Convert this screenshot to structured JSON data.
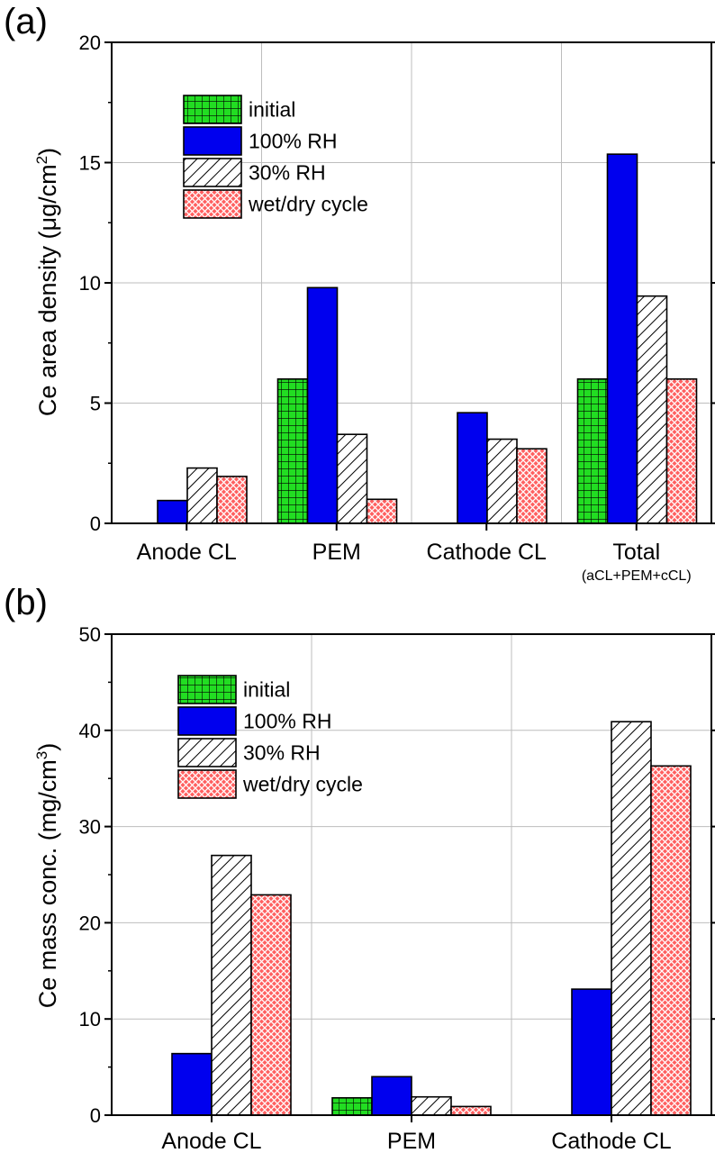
{
  "figure": {
    "panels": [
      {
        "label": "(a)"
      },
      {
        "label": "(b)"
      }
    ]
  },
  "chart_data": [
    {
      "type": "bar",
      "panel": "(a)",
      "title": "",
      "ylabel": "Ce area density (μg/cm²)",
      "ylabel_parts": {
        "base": "Ce area density (μg/cm",
        "sup": "2",
        "end": ")"
      },
      "xlabel": "",
      "ylim": [
        0,
        20
      ],
      "yticks": [
        0,
        5,
        10,
        15,
        20
      ],
      "ytick_labels": [
        "0",
        "5",
        "10",
        "15",
        "20"
      ],
      "grid": true,
      "categories": [
        "Anode CL",
        "PEM",
        "Cathode CL",
        "Total"
      ],
      "category_sublabels": [
        "",
        "",
        "",
        "(aCL+PEM+cCL)"
      ],
      "legend_position": "top-left",
      "series": [
        {
          "name": "initial",
          "pattern": "grid",
          "color": "#22dd22",
          "values": [
            0,
            6.0,
            0,
            6.0
          ]
        },
        {
          "name": "100% RH",
          "pattern": "solid",
          "color": "#0000ee",
          "values": [
            0.95,
            9.8,
            4.6,
            15.35
          ]
        },
        {
          "name": "30% RH",
          "pattern": "hatch",
          "color": "#ffffff",
          "values": [
            2.3,
            3.7,
            3.5,
            9.45
          ]
        },
        {
          "name": "wet/dry cycle",
          "pattern": "cross",
          "color": "#ff5555",
          "values": [
            1.95,
            1.0,
            3.1,
            6.0
          ]
        }
      ]
    },
    {
      "type": "bar",
      "panel": "(b)",
      "title": "",
      "ylabel": "Ce mass conc. (mg/cm³)",
      "ylabel_parts": {
        "base": "Ce mass conc. (mg/cm",
        "sup": "3",
        "end": ")"
      },
      "xlabel": "",
      "ylim": [
        0,
        50
      ],
      "yticks": [
        0,
        10,
        20,
        30,
        40,
        50
      ],
      "ytick_labels": [
        "0",
        "10",
        "20",
        "30",
        "40",
        "50"
      ],
      "grid": true,
      "categories": [
        "Anode CL",
        "PEM",
        "Cathode CL"
      ],
      "category_sublabels": [
        "",
        "",
        ""
      ],
      "legend_position": "top-left",
      "series": [
        {
          "name": "initial",
          "pattern": "grid",
          "color": "#22dd22",
          "values": [
            0,
            1.8,
            0
          ]
        },
        {
          "name": "100% RH",
          "pattern": "solid",
          "color": "#0000ee",
          "values": [
            6.4,
            4.0,
            13.1
          ]
        },
        {
          "name": "30% RH",
          "pattern": "hatch",
          "color": "#ffffff",
          "values": [
            27.0,
            1.9,
            40.9
          ]
        },
        {
          "name": "wet/dry cycle",
          "pattern": "cross",
          "color": "#ff5555",
          "values": [
            22.9,
            0.9,
            36.3
          ]
        }
      ]
    }
  ]
}
